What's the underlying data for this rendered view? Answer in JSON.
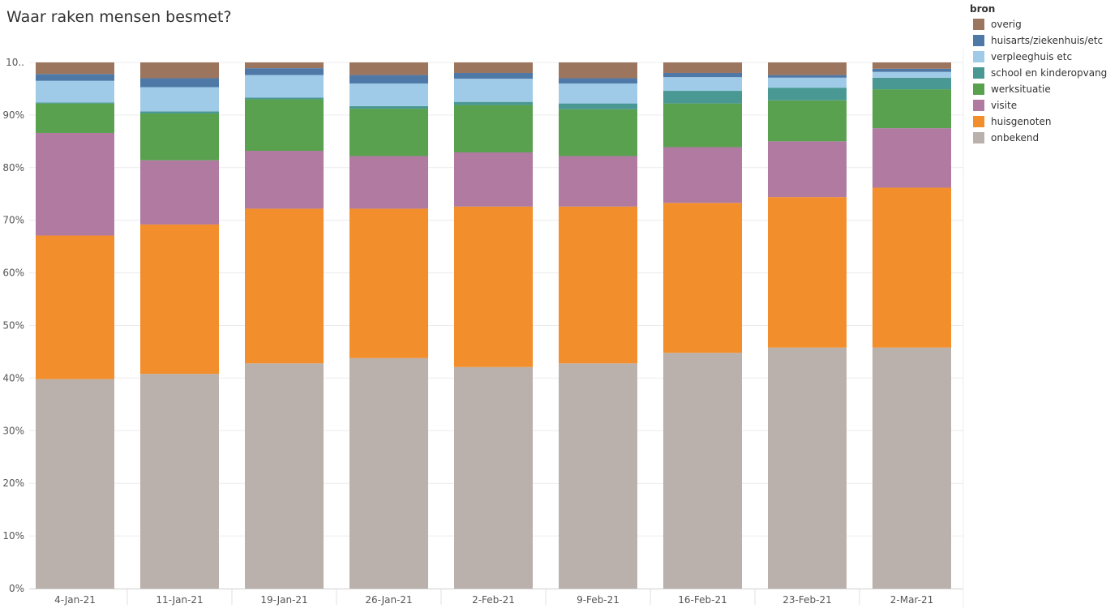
{
  "chart_data": {
    "type": "bar",
    "stacked": true,
    "title": "Waar raken mensen besmet?",
    "xlabel": "",
    "ylabel": "",
    "ylim": [
      0,
      100
    ],
    "categories": [
      "4-Jan-21",
      "11-Jan-21",
      "19-Jan-21",
      "26-Jan-21",
      "2-Feb-21",
      "9-Feb-21",
      "16-Feb-21",
      "23-Feb-21",
      "2-Mar-21"
    ],
    "y_ticks": [
      "0%",
      "10%",
      "20%",
      "30%",
      "40%",
      "50%",
      "60%",
      "70%",
      "80%",
      "90%",
      "10.."
    ],
    "legend_title": "bron",
    "legend_order": [
      "overig",
      "huisarts/ziekenhuis/etc",
      "verpleeghuis etc",
      "school en kinderopvang",
      "werksituatie",
      "visite",
      "huisgenoten",
      "onbekend"
    ],
    "series": [
      {
        "name": "onbekend",
        "color": "#BAB0AC",
        "values": [
          39.8,
          40.8,
          42.8,
          43.8,
          42.1,
          42.8,
          44.8,
          45.8,
          45.8
        ]
      },
      {
        "name": "huisgenoten",
        "color": "#F28E2B",
        "values": [
          27.3,
          28.4,
          29.4,
          28.4,
          30.5,
          29.8,
          28.5,
          28.6,
          30.4
        ]
      },
      {
        "name": "visite",
        "color": "#B07AA1",
        "values": [
          19.5,
          12.2,
          11.0,
          10.0,
          10.3,
          9.6,
          10.6,
          10.6,
          11.3
        ]
      },
      {
        "name": "werksituatie",
        "color": "#59A14F",
        "values": [
          5.6,
          8.9,
          9.8,
          9.0,
          9.0,
          8.9,
          8.3,
          7.8,
          7.4
        ]
      },
      {
        "name": "school en kinderopvang",
        "color": "#499894",
        "values": [
          0.2,
          0.4,
          0.3,
          0.5,
          0.6,
          1.1,
          2.4,
          2.4,
          2.2
        ]
      },
      {
        "name": "verpleeghuis etc",
        "color": "#A0CBE8",
        "values": [
          4.1,
          4.6,
          4.3,
          4.3,
          4.4,
          3.8,
          2.6,
          1.9,
          1.1
        ]
      },
      {
        "name": "huisarts/ziekenhuis/etc",
        "color": "#4E79A7",
        "values": [
          1.3,
          1.7,
          1.3,
          1.6,
          1.1,
          1.0,
          0.8,
          0.5,
          0.6
        ]
      },
      {
        "name": "overig",
        "color": "#9C755F",
        "values": [
          2.2,
          3.0,
          1.1,
          2.4,
          2.0,
          3.0,
          2.0,
          2.4,
          1.2
        ]
      }
    ]
  }
}
